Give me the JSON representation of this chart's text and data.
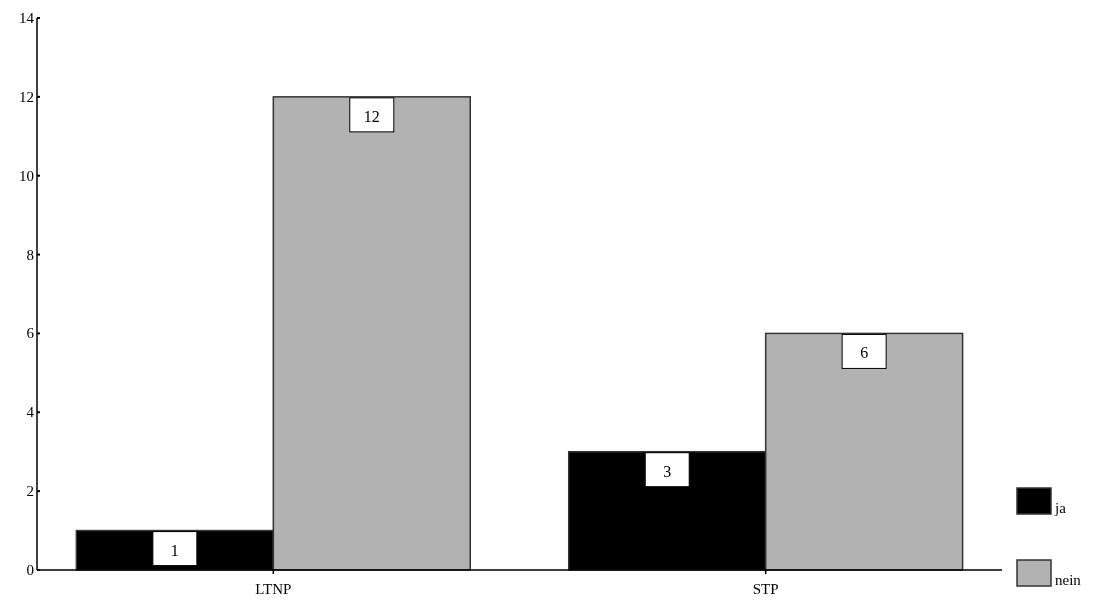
{
  "chart_data": {
    "type": "bar",
    "categories": [
      "LTNP",
      "STP"
    ],
    "series": [
      {
        "name": "ja",
        "color": "#000000",
        "values": [
          1,
          3
        ]
      },
      {
        "name": "nein",
        "color": "#b2b2b2",
        "values": [
          12,
          6
        ]
      }
    ],
    "ylim": [
      0,
      14
    ],
    "yticks": [
      0,
      2,
      4,
      6,
      8,
      10,
      12,
      14
    ],
    "data_labels": true,
    "legend": "bottom right",
    "grid": false
  }
}
